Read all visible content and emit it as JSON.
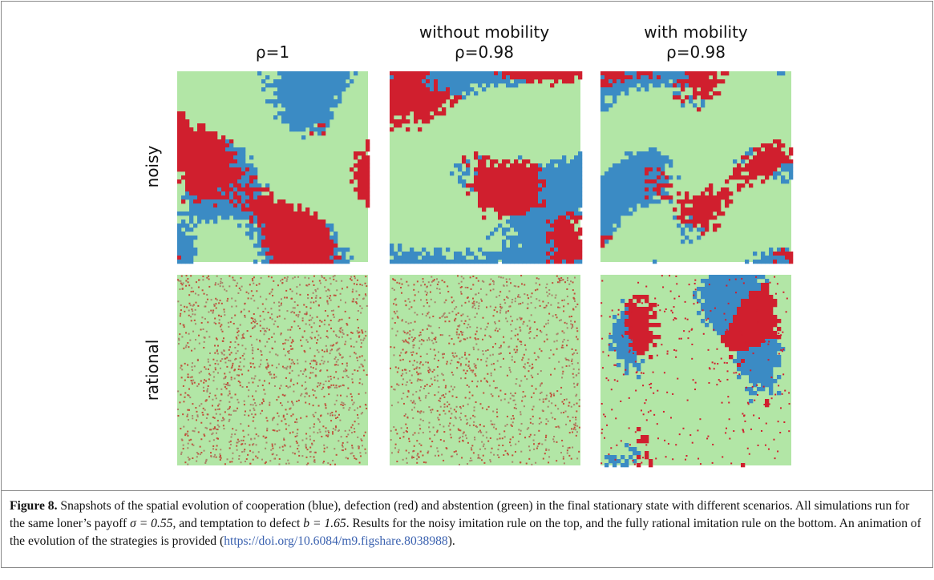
{
  "figure": {
    "columns": [
      {
        "title": null,
        "subtitle": "ρ=1"
      },
      {
        "title": "without mobility",
        "subtitle": "ρ=0.98"
      },
      {
        "title": "with mobility",
        "subtitle": "ρ=0.98"
      }
    ],
    "rows": [
      "noisy",
      "rational"
    ]
  },
  "caption": {
    "label": "Figure 8.",
    "text_1": "Snapshots of the spatial evolution of cooperation (blue), defection (red) and abstention (green) in the final stationary state with different scenarios. All simulations run for the same loner’s payoff",
    "math_1": "σ = 0.55",
    "text_2": ", and temptation to defect",
    "math_2": "b = 1.65",
    "text_3": ". Results for the noisy imitation rule on the top, and the fully rational imitation rule on the bottom. An animation of the evolution of the strategies is provided (",
    "link": "https://doi.org/10.6084/m9.figshare.8038988",
    "text_4": ")."
  }
}
